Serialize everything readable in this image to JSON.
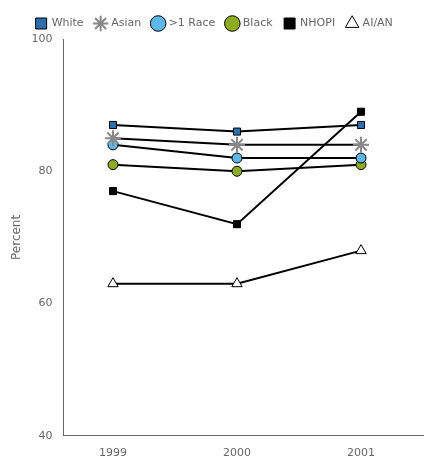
{
  "chart_data": {
    "type": "line",
    "x": [
      1999,
      2000,
      2001
    ],
    "series": [
      {
        "name": "White",
        "color": "#2c6fad",
        "marker": "square",
        "values": [
          87,
          86,
          87
        ]
      },
      {
        "name": "Asian",
        "color": "#888888",
        "marker": "star",
        "values": [
          85,
          84,
          84
        ]
      },
      {
        "name": ">1 Race",
        "color": "#5bb8e8",
        "marker": "circle",
        "values": [
          84,
          82,
          82
        ]
      },
      {
        "name": "Black",
        "color": "#8fac20",
        "marker": "circle",
        "values": [
          81,
          80,
          81
        ]
      },
      {
        "name": "NHOPI",
        "color": "#000000",
        "marker": "square",
        "values": [
          77,
          72,
          89
        ]
      },
      {
        "name": "AI/AN",
        "color": "#ffffff",
        "marker": "triangle",
        "values": [
          63,
          63,
          68
        ]
      }
    ],
    "ylabel": "Percent",
    "xlim": [
      1998.6,
      2001.5
    ],
    "xticks": [
      1999,
      2000,
      2001
    ],
    "ylim": [
      40,
      100
    ],
    "yticks": [
      40,
      60,
      80,
      100
    ],
    "grid": false,
    "legend": "top"
  }
}
